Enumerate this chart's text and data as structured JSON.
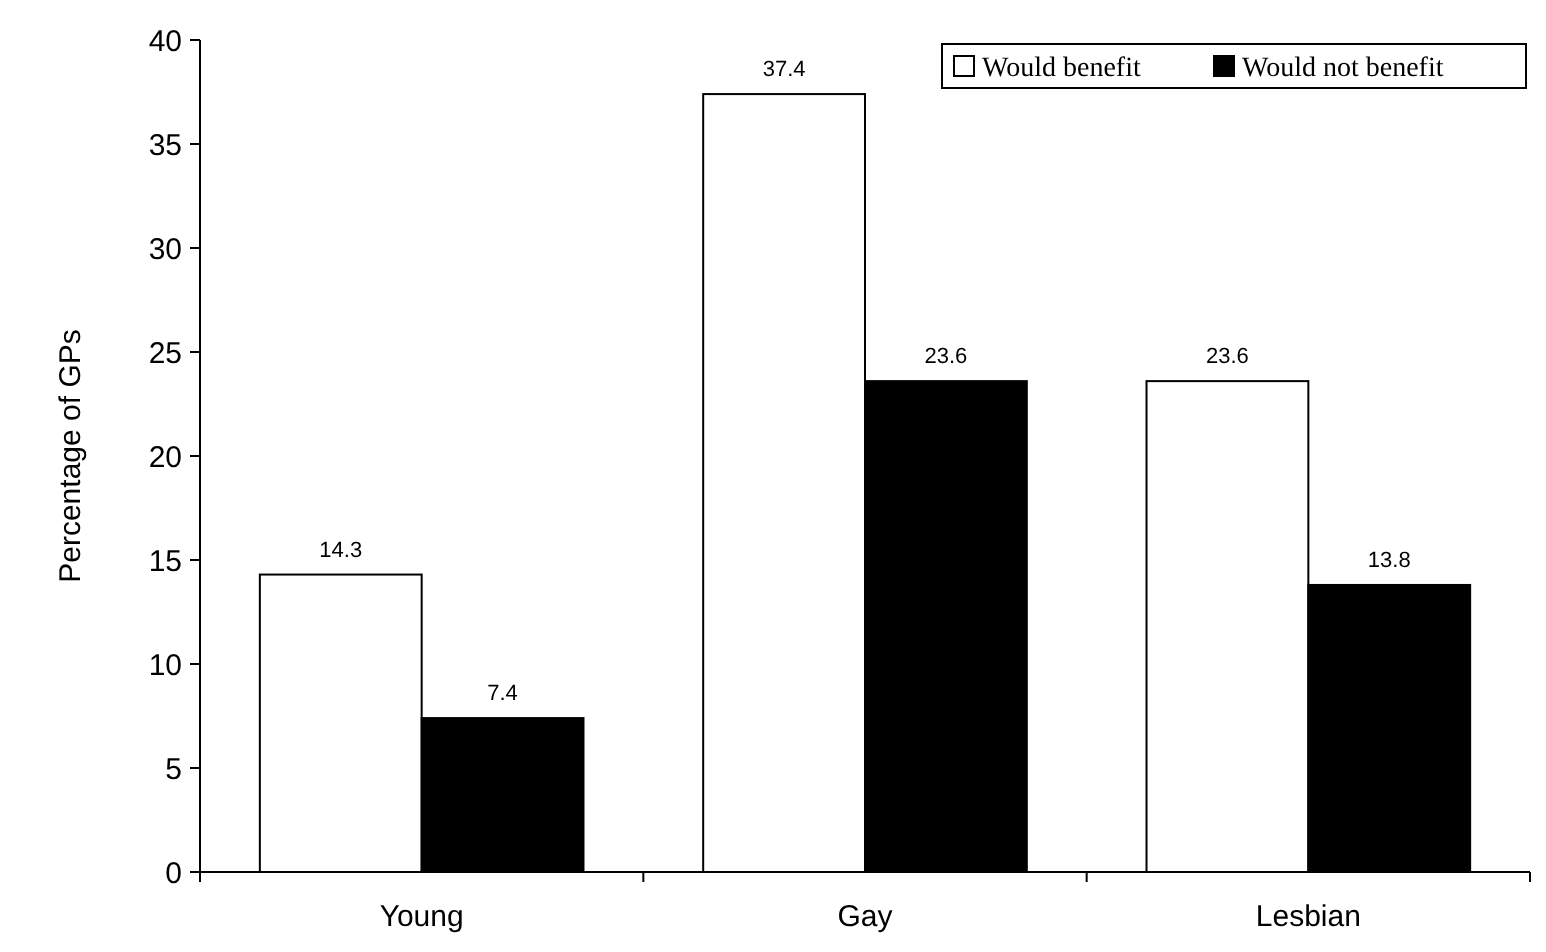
{
  "chart_data": {
    "type": "bar",
    "ylabel": "Percentage of GPs",
    "categories": [
      "Young",
      "Gay",
      "Lesbian"
    ],
    "series": [
      {
        "name": "Would benefit",
        "color": "#ffffff",
        "values": [
          14.3,
          37.4,
          23.6
        ]
      },
      {
        "name": "Would not benefit",
        "color": "#000000",
        "values": [
          7.4,
          23.6,
          13.8
        ]
      }
    ],
    "ylim": [
      0,
      40
    ],
    "yticks": [
      0,
      5,
      10,
      15,
      20,
      25,
      30,
      35,
      40
    ],
    "data_labels": true,
    "grid": false,
    "legend": "top right"
  }
}
